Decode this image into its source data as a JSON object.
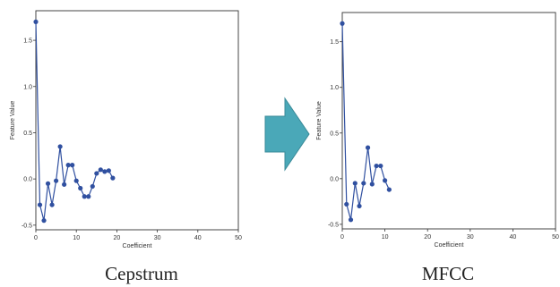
{
  "arrow_color": "#4aa8b8",
  "line_color": "#3050a0",
  "chart_data": [
    {
      "type": "line",
      "caption": "Cepstrum",
      "xlabel": "Coefficient",
      "ylabel": "Feature Value",
      "xlim": [
        0,
        50
      ],
      "ylim": [
        -0.55,
        1.82
      ],
      "xticks": [
        "0",
        "10",
        "20",
        "30",
        "40",
        "50"
      ],
      "yticks": [
        "1.5",
        "1.0",
        "0.5",
        "0.0",
        "-0.5"
      ],
      "grid": false,
      "series": [
        {
          "x": [
            0,
            1,
            2,
            3,
            4,
            5,
            6,
            7,
            8,
            9,
            10,
            11,
            12,
            13,
            14,
            15,
            16,
            17,
            18,
            19
          ],
          "values": [
            1.7,
            -0.28,
            -0.45,
            -0.05,
            -0.28,
            -0.02,
            0.35,
            -0.06,
            0.15,
            0.15,
            -0.02,
            -0.1,
            -0.19,
            -0.19,
            -0.08,
            0.06,
            0.1,
            0.08,
            0.09,
            0.01
          ]
        }
      ]
    },
    {
      "type": "line",
      "caption": "MFCC",
      "xlabel": "Coefficient",
      "ylabel": "Feature Value",
      "xlim": [
        0,
        50
      ],
      "ylim": [
        -0.55,
        1.82
      ],
      "xticks": [
        "0",
        "10",
        "20",
        "30",
        "40",
        "50"
      ],
      "yticks": [
        "1.5",
        "1.0",
        "0.5",
        "0.0",
        "-0.5"
      ],
      "grid": false,
      "series": [
        {
          "x": [
            0,
            1,
            2,
            3,
            4,
            5,
            6,
            7,
            8,
            9,
            10,
            11
          ],
          "values": [
            1.7,
            -0.28,
            -0.45,
            -0.05,
            -0.3,
            -0.05,
            0.34,
            -0.06,
            0.14,
            0.14,
            -0.02,
            -0.12
          ]
        }
      ]
    }
  ]
}
